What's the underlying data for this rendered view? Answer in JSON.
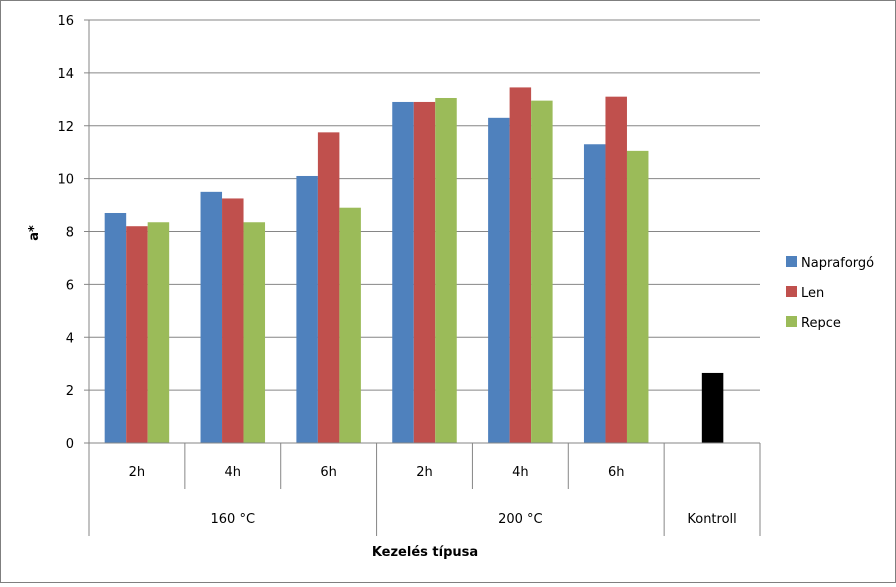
{
  "chart_data": {
    "type": "bar",
    "title": "",
    "xlabel": "Kezelés típusa",
    "ylabel": "a*",
    "ylim": [
      0,
      16
    ],
    "yticks": [
      "0",
      "2",
      "4",
      "6",
      "8",
      "10",
      "12",
      "14",
      "16"
    ],
    "categories": [
      "2h",
      "4h",
      "6h",
      "2h",
      "4h",
      "6h",
      ""
    ],
    "groups": [
      {
        "label": "160 °C",
        "span": 3
      },
      {
        "label": "200 °C",
        "span": 3
      },
      {
        "label": "Kontroll",
        "span": 1
      }
    ],
    "series": [
      {
        "name": "Napraforgó",
        "color": "#4f81bd",
        "values": [
          8.7,
          9.5,
          10.1,
          12.9,
          12.3,
          11.3,
          null
        ]
      },
      {
        "name": "Len",
        "color": "#c0504d",
        "values": [
          8.2,
          9.25,
          11.75,
          12.9,
          13.45,
          13.1,
          null
        ]
      },
      {
        "name": "Repce",
        "color": "#9bbb59",
        "values": [
          8.35,
          8.35,
          8.9,
          13.05,
          12.95,
          11.05,
          null
        ]
      }
    ],
    "control": {
      "category_index": 6,
      "value": 2.65,
      "color": "#000000"
    },
    "legend": "right",
    "grid": true
  }
}
